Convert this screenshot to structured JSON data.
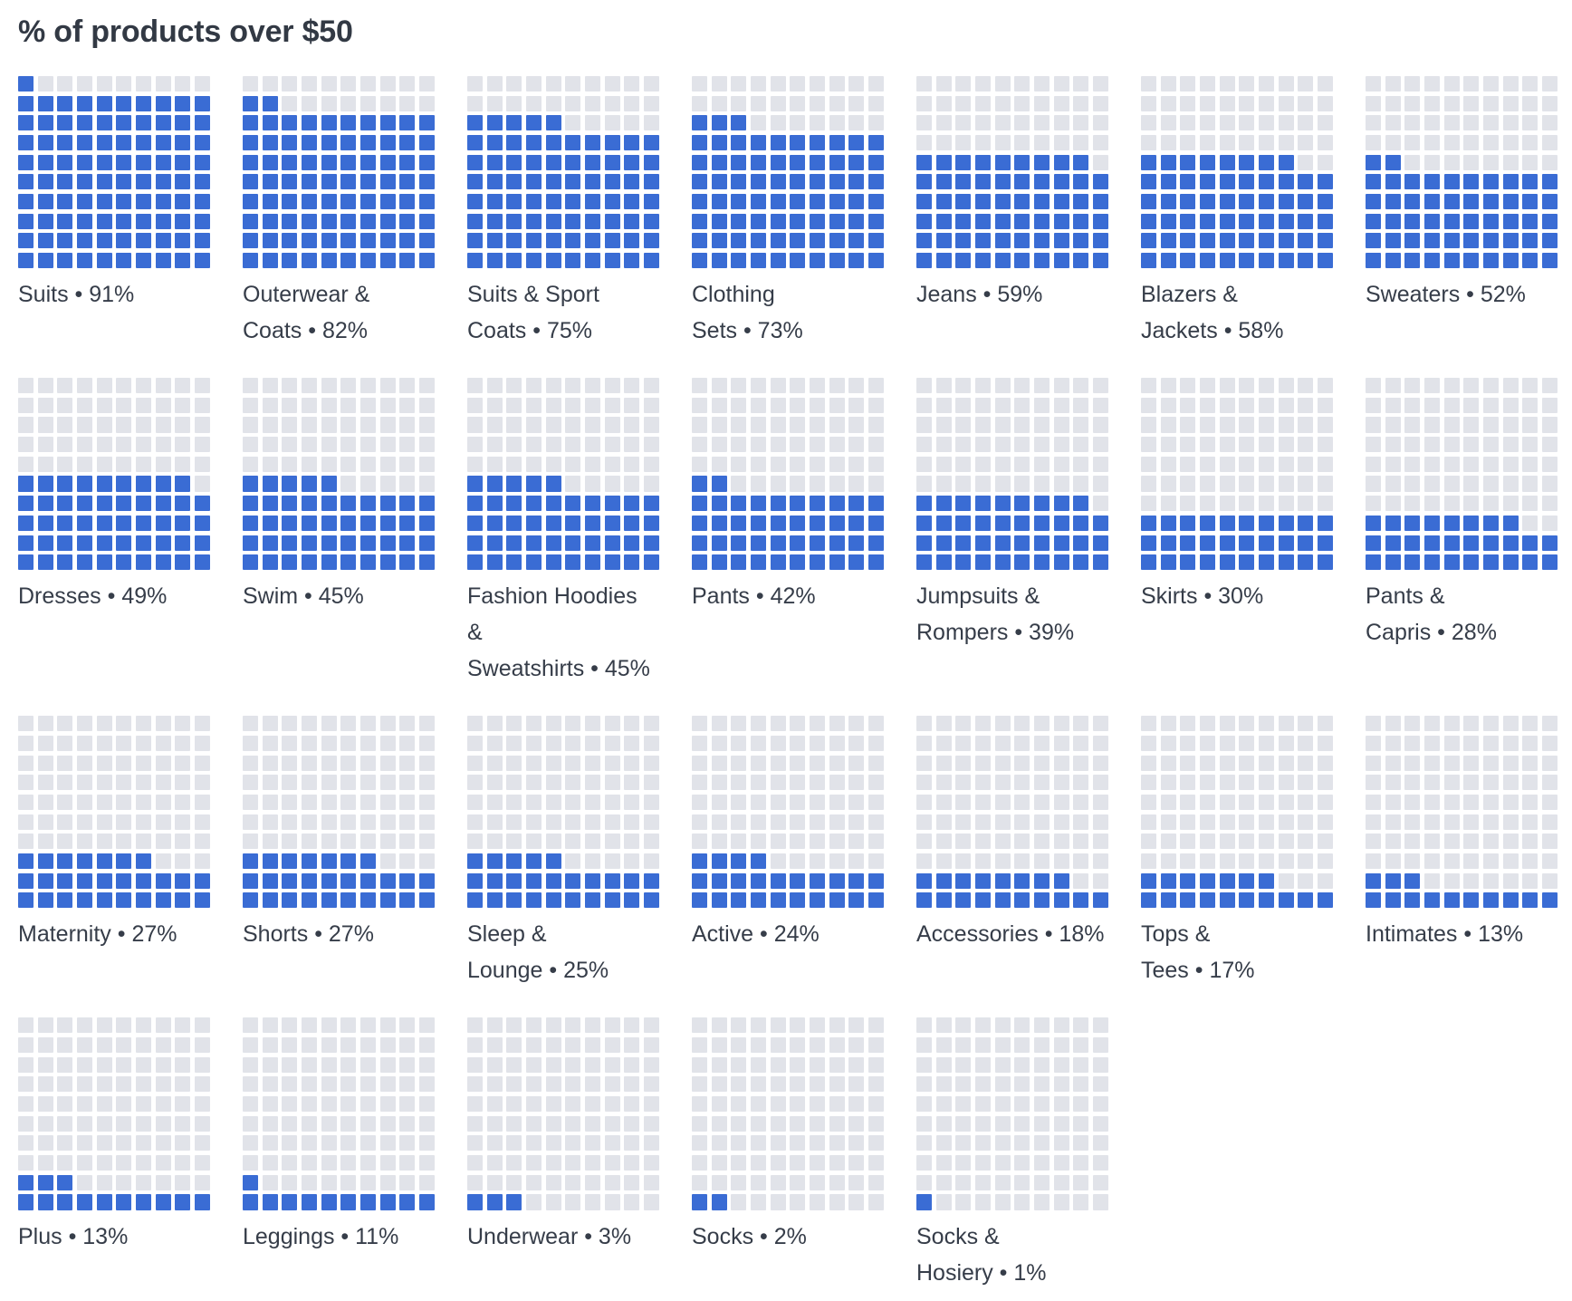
{
  "title": "% of products over $50",
  "colors": {
    "filled": "#3a6cd4",
    "empty": "#e1e3e9",
    "title_text": "#323944",
    "label_text": "#363d49"
  },
  "waffle": {
    "rows": 10,
    "cols": 10,
    "fill_origin": "bottom-left",
    "square_unit": "1 square = 1%"
  },
  "chart_data": {
    "type": "waffle",
    "title": "% of products over $50",
    "unit": "percent",
    "grid": "10x10, filled bottom-up left-to-right, 1 square = 1%",
    "categories": [
      "Suits",
      "Outerwear & Coats",
      "Suits & Sport Coats",
      "Clothing Sets",
      "Jeans",
      "Blazers & Jackets",
      "Sweaters",
      "Dresses",
      "Swim",
      "Fashion Hoodies & Sweatshirts",
      "Pants",
      "Jumpsuits & Rompers",
      "Skirts",
      "Pants & Capris",
      "Maternity",
      "Shorts",
      "Sleep & Lounge",
      "Active",
      "Accessories",
      "Tops & Tees",
      "Intimates",
      "Plus",
      "Leggings",
      "Underwear",
      "Socks",
      "Socks & Hosiery"
    ],
    "values": [
      91,
      82,
      75,
      73,
      59,
      58,
      52,
      49,
      45,
      45,
      42,
      39,
      30,
      28,
      27,
      27,
      25,
      24,
      18,
      17,
      13,
      13,
      11,
      3,
      2,
      1
    ],
    "legend_position": "none",
    "layout": "7 columns x 4 rows of small multiples"
  },
  "charts": [
    {
      "name": "Suits",
      "value": 91,
      "label_lines": [
        "Suits • 91%"
      ]
    },
    {
      "name": "Outerwear & Coats",
      "value": 82,
      "label_lines": [
        "Outerwear &",
        "Coats • 82%"
      ]
    },
    {
      "name": "Suits & Sport Coats",
      "value": 75,
      "label_lines": [
        "Suits & Sport",
        "Coats • 75%"
      ]
    },
    {
      "name": "Clothing Sets",
      "value": 73,
      "label_lines": [
        "Clothing",
        "Sets • 73%"
      ]
    },
    {
      "name": "Jeans",
      "value": 59,
      "label_lines": [
        "Jeans • 59%"
      ]
    },
    {
      "name": "Blazers & Jackets",
      "value": 58,
      "label_lines": [
        "Blazers &",
        "Jackets • 58%"
      ]
    },
    {
      "name": "Sweaters",
      "value": 52,
      "label_lines": [
        "Sweaters • 52%"
      ]
    },
    {
      "name": "Dresses",
      "value": 49,
      "label_lines": [
        "Dresses • 49%"
      ]
    },
    {
      "name": "Swim",
      "value": 45,
      "label_lines": [
        "Swim • 45%"
      ]
    },
    {
      "name": "Fashion Hoodies & Sweatshirts",
      "value": 45,
      "label_lines": [
        "Fashion Hoodies",
        "&",
        "Sweatshirts • 45%"
      ]
    },
    {
      "name": "Pants",
      "value": 42,
      "label_lines": [
        "Pants • 42%"
      ]
    },
    {
      "name": "Jumpsuits & Rompers",
      "value": 39,
      "label_lines": [
        "Jumpsuits &",
        "Rompers • 39%"
      ]
    },
    {
      "name": "Skirts",
      "value": 30,
      "label_lines": [
        "Skirts • 30%"
      ]
    },
    {
      "name": "Pants & Capris",
      "value": 28,
      "label_lines": [
        "Pants &",
        "Capris • 28%"
      ]
    },
    {
      "name": "Maternity",
      "value": 27,
      "label_lines": [
        "Maternity • 27%"
      ]
    },
    {
      "name": "Shorts",
      "value": 27,
      "label_lines": [
        "Shorts • 27%"
      ]
    },
    {
      "name": "Sleep & Lounge",
      "value": 25,
      "label_lines": [
        "Sleep &",
        "Lounge • 25%"
      ]
    },
    {
      "name": "Active",
      "value": 24,
      "label_lines": [
        "Active • 24%"
      ]
    },
    {
      "name": "Accessories",
      "value": 18,
      "label_lines": [
        "Accessories • 18%"
      ]
    },
    {
      "name": "Tops & Tees",
      "value": 17,
      "label_lines": [
        "Tops &",
        "Tees • 17%"
      ]
    },
    {
      "name": "Intimates",
      "value": 13,
      "label_lines": [
        "Intimates • 13%"
      ]
    },
    {
      "name": "Plus",
      "value": 13,
      "label_lines": [
        "Plus • 13%"
      ]
    },
    {
      "name": "Leggings",
      "value": 11,
      "label_lines": [
        "Leggings • 11%"
      ]
    },
    {
      "name": "Underwear",
      "value": 3,
      "label_lines": [
        "Underwear • 3%"
      ]
    },
    {
      "name": "Socks",
      "value": 2,
      "label_lines": [
        "Socks • 2%"
      ]
    },
    {
      "name": "Socks & Hosiery",
      "value": 1,
      "label_lines": [
        "Socks &",
        "Hosiery • 1%"
      ]
    }
  ]
}
